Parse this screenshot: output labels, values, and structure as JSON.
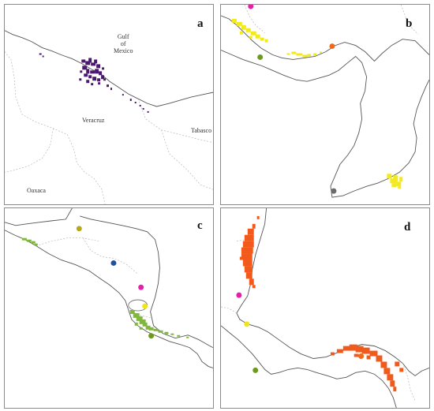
{
  "figure": {
    "panels": [
      {
        "id": "a",
        "letter": "a",
        "place_labels": {
          "gulf_line1": "Gulf",
          "gulf_line2": "of",
          "gulf_line3": "Mexico",
          "veracruz": "Veracruz",
          "tabasco": "Tabasco",
          "oaxaca": "Oaxaca"
        },
        "distribution_color": "#4b1870"
      },
      {
        "id": "b",
        "letter": "b",
        "distribution_color": "#f2ea1a"
      },
      {
        "id": "c",
        "letter": "c",
        "distribution_color": "#7fb83a"
      },
      {
        "id": "d",
        "letter": "d",
        "distribution_color": "#f25a1b"
      }
    ],
    "point_colors": {
      "magenta": "#e61ea8",
      "olive_green": "#6d9a1e",
      "orange": "#f06a1c",
      "gray": "#6b6b6b",
      "olive_yellow": "#b8a817",
      "blue": "#1f4ea3",
      "yellow": "#f0e41a"
    }
  }
}
